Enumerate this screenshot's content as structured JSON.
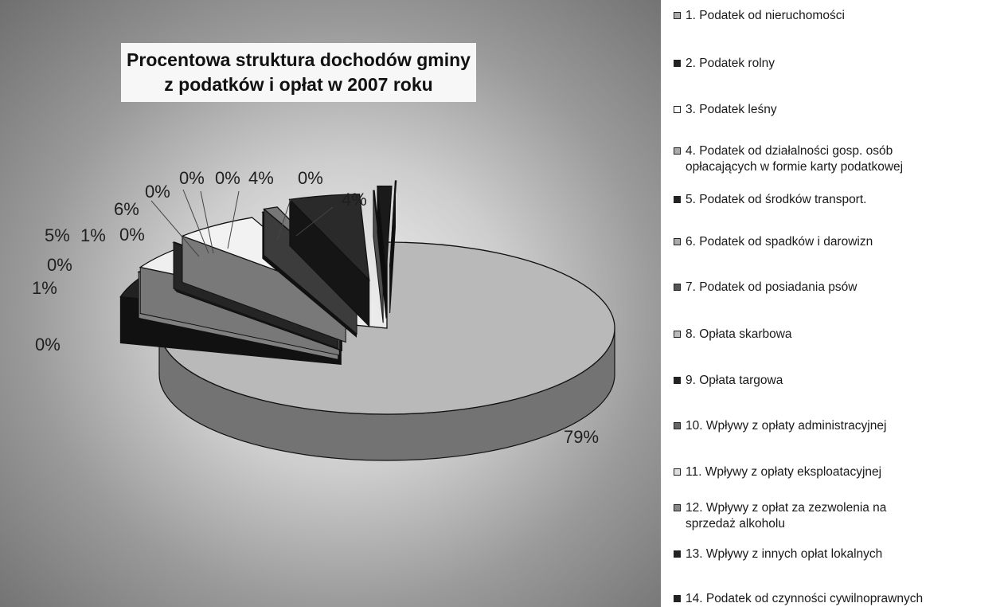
{
  "chart_data": {
    "type": "pie",
    "title_lines": [
      "Procentowa struktura dochodów gminy",
      "z podatków i opłat w 2007 roku"
    ],
    "slices": [
      {
        "name": "1. Podatek od nieruchomości",
        "value": 79,
        "label": "79%",
        "color": "#b9b9b9"
      },
      {
        "name": "2. Podatek rolny",
        "value": 4,
        "label": "4%",
        "color": "#222222"
      },
      {
        "name": "3. Podatek leśny",
        "value": 0,
        "label": "0%",
        "color": "#ffffff"
      },
      {
        "name": "4. Podatek od działalności gosp. osób opłacających w formie karty podatkowej",
        "value": 4,
        "label": "4%",
        "color": "#efefef"
      },
      {
        "name": "5. Podatek od środków transport.",
        "value": 0,
        "label": "0%",
        "color": "#2e2e2e"
      },
      {
        "name": "6. Podatek od spadków i darowizn",
        "value": 0,
        "label": "0%",
        "color": "#8c8c8c"
      },
      {
        "name": "7. Podatek od posiadania psów",
        "value": 0,
        "label": "0%",
        "color": "#4a4a4a"
      },
      {
        "name": "8. Opłata skarbowa",
        "value": 6,
        "label": "6%",
        "color": "#f2f2f2"
      },
      {
        "name": "9. Opłata targowa",
        "value": 0,
        "label": "0%",
        "color": "#222222"
      },
      {
        "name": "10. Wpływy z opłaty administracyjnej",
        "value": 1,
        "label": "1%",
        "color": "#777777"
      },
      {
        "name": "11. Wpływy z opłaty eksploatacyjnej",
        "value": 5,
        "label": "5%",
        "color": "#2a2a2a"
      },
      {
        "name": "12. Wpływy z opłat za zezwolenia na sprzedaż alkoholu",
        "value": 0,
        "label": "0%",
        "color": "#9a9a9a"
      },
      {
        "name": "13. Wpływy z innych opłat lokalnych",
        "value": 1,
        "label": "1%",
        "color": "#1a1a1a"
      },
      {
        "name": "14. Podatek od czynności cywilnoprawnych",
        "value": 0,
        "label": "0%",
        "color": "#1c1c1c"
      }
    ],
    "legend": {
      "placement": "right",
      "entries": [
        {
          "lines": [
            "1. Podatek od nieruchomości"
          ],
          "swatch": "#aaaaaa"
        },
        {
          "lines": [
            "2. Podatek rolny"
          ],
          "swatch": "#222222"
        },
        {
          "lines": [
            "3. Podatek leśny"
          ],
          "swatch": "#ffffff"
        },
        {
          "lines": [
            "4. Podatek od działalności gosp. osób",
            "opłacających w formie karty podatkowej"
          ],
          "swatch": "#aaaaaa"
        },
        {
          "lines": [
            "5. Podatek od środków transport."
          ],
          "swatch": "#222222"
        },
        {
          "lines": [
            "6. Podatek od spadków i darowizn"
          ],
          "swatch": "#aaaaaa"
        },
        {
          "lines": [
            "7. Podatek od posiadania psów"
          ],
          "swatch": "#555555"
        },
        {
          "lines": [
            "8. Opłata skarbowa"
          ],
          "swatch": "#bbbbbb"
        },
        {
          "lines": [
            "9. Opłata targowa"
          ],
          "swatch": "#222222"
        },
        {
          "lines": [
            "10. Wpływy z opłaty administracyjnej"
          ],
          "swatch": "#666666"
        },
        {
          "lines": [
            "11. Wpływy z opłaty eksploatacyjnej"
          ],
          "swatch": "#dddddd"
        },
        {
          "lines": [
            "12. Wpływy z opłat za zezwolenia na",
            "sprzedaż alkoholu"
          ],
          "swatch": "#888888"
        },
        {
          "lines": [
            "13. Wpływy z innych opłat lokalnych"
          ],
          "swatch": "#222222"
        },
        {
          "lines": [
            "14. Podatek od czynności cywilnoprawnych"
          ],
          "swatch": "#222222"
        }
      ]
    }
  }
}
